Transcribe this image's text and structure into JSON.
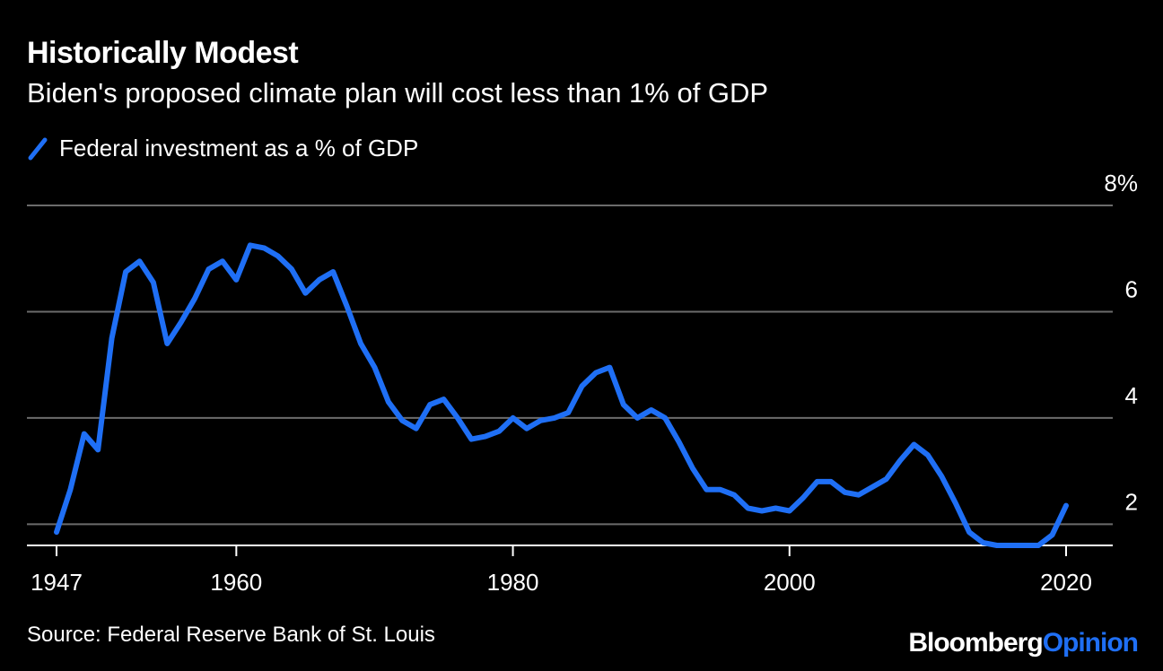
{
  "title": "Historically Modest",
  "subtitle": "Biden's proposed climate plan will cost less than 1% of GDP",
  "source": "Source: Federal Reserve Bank of St. Louis",
  "logo": {
    "part1": "Bloomberg",
    "part2": "Opinion"
  },
  "colors": {
    "background": "#000000",
    "line": "#1f6ff5",
    "grid": "#6b6b6b",
    "text": "#ffffff"
  },
  "chart_data": {
    "type": "line",
    "title": "Historically Modest",
    "subtitle": "Biden's proposed climate plan will cost less than 1% of GDP",
    "xlabel": "",
    "ylabel": "",
    "xlim": [
      1947,
      2020
    ],
    "ylim": [
      1.6,
      8
    ],
    "x_ticks": [
      1947,
      1960,
      1980,
      2000,
      2020
    ],
    "y_ticks": [
      2,
      4,
      6,
      8
    ],
    "y_tick_labels": [
      "2",
      "4",
      "6",
      "8%"
    ],
    "grid": true,
    "y_axis_position": "right",
    "legend_position": "top-left",
    "series": [
      {
        "name": "Federal investment as a % of GDP",
        "color": "#1f6ff5",
        "x": [
          1947,
          1948,
          1949,
          1950,
          1951,
          1952,
          1953,
          1954,
          1955,
          1956,
          1957,
          1958,
          1959,
          1960,
          1961,
          1962,
          1963,
          1964,
          1965,
          1966,
          1967,
          1968,
          1969,
          1970,
          1971,
          1972,
          1973,
          1974,
          1975,
          1976,
          1977,
          1978,
          1979,
          1980,
          1981,
          1982,
          1983,
          1984,
          1985,
          1986,
          1987,
          1988,
          1989,
          1990,
          1991,
          1992,
          1993,
          1994,
          1995,
          1996,
          1997,
          1998,
          1999,
          2000,
          2001,
          2002,
          2003,
          2004,
          2005,
          2006,
          2007,
          2008,
          2009,
          2010,
          2011,
          2012,
          2013,
          2014,
          2015,
          2016,
          2017,
          2018,
          2019,
          2020
        ],
        "values": [
          1.85,
          2.65,
          3.7,
          3.4,
          5.5,
          6.75,
          6.95,
          6.55,
          5.4,
          5.8,
          6.25,
          6.8,
          6.95,
          6.6,
          7.25,
          7.2,
          7.05,
          6.8,
          6.35,
          6.6,
          6.75,
          6.1,
          5.4,
          4.95,
          4.3,
          3.95,
          3.8,
          4.25,
          4.35,
          4.0,
          3.6,
          3.65,
          3.75,
          4.0,
          3.8,
          3.95,
          4.0,
          4.1,
          4.6,
          4.85,
          4.95,
          4.25,
          4.0,
          4.15,
          4.0,
          3.55,
          3.05,
          2.65,
          2.65,
          2.55,
          2.3,
          2.25,
          2.3,
          2.25,
          2.5,
          2.8,
          2.8,
          2.6,
          2.55,
          2.7,
          2.85,
          3.2,
          3.5,
          3.3,
          2.9,
          2.4,
          1.85,
          1.65,
          1.6,
          1.6,
          1.6,
          1.6,
          1.8,
          2.35
        ]
      }
    ]
  }
}
